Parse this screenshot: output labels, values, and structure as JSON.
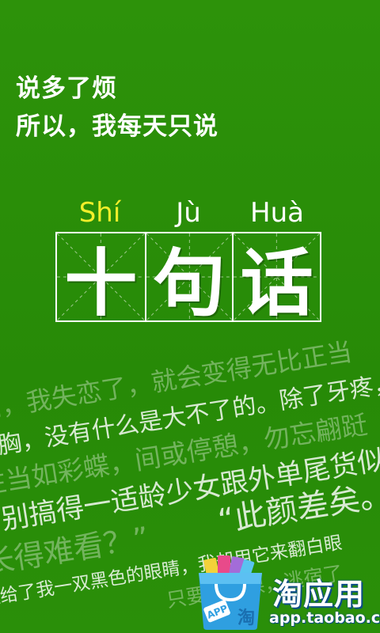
{
  "intro": {
    "line1": "说多了烦",
    "line2": "所以，我每天只说"
  },
  "pinyin": [
    "Shí",
    "Jù",
    "Huà"
  ],
  "title_chars": [
    "十",
    "句",
    "话"
  ],
  "quotes": [
    "问，我失恋了，就会变得无比正当",
    "了胸，没有什么是大不了的。除了牙疼，注",
    "往当如彩蝶，间或停憩，勿忘翩跹",
    "别搞得一适龄少女跟外单尾货似",
    "长得难看？”",
    "“此颜差矣。",
    "夜给了我一双黑色的眼睛，我却用它来翻白眼",
    "只要你逃课，逃宿了"
  ],
  "badge": {
    "label": "APP",
    "mark": "淘"
  },
  "brand": {
    "name": "淘应用",
    "url": "app.taobao.com"
  },
  "colors": {
    "background": "#2a8c08",
    "pinyin_highlight": "#f3ee2a",
    "brand_blue": "#0d4e87",
    "bag_blue": "#2f9fe0"
  }
}
